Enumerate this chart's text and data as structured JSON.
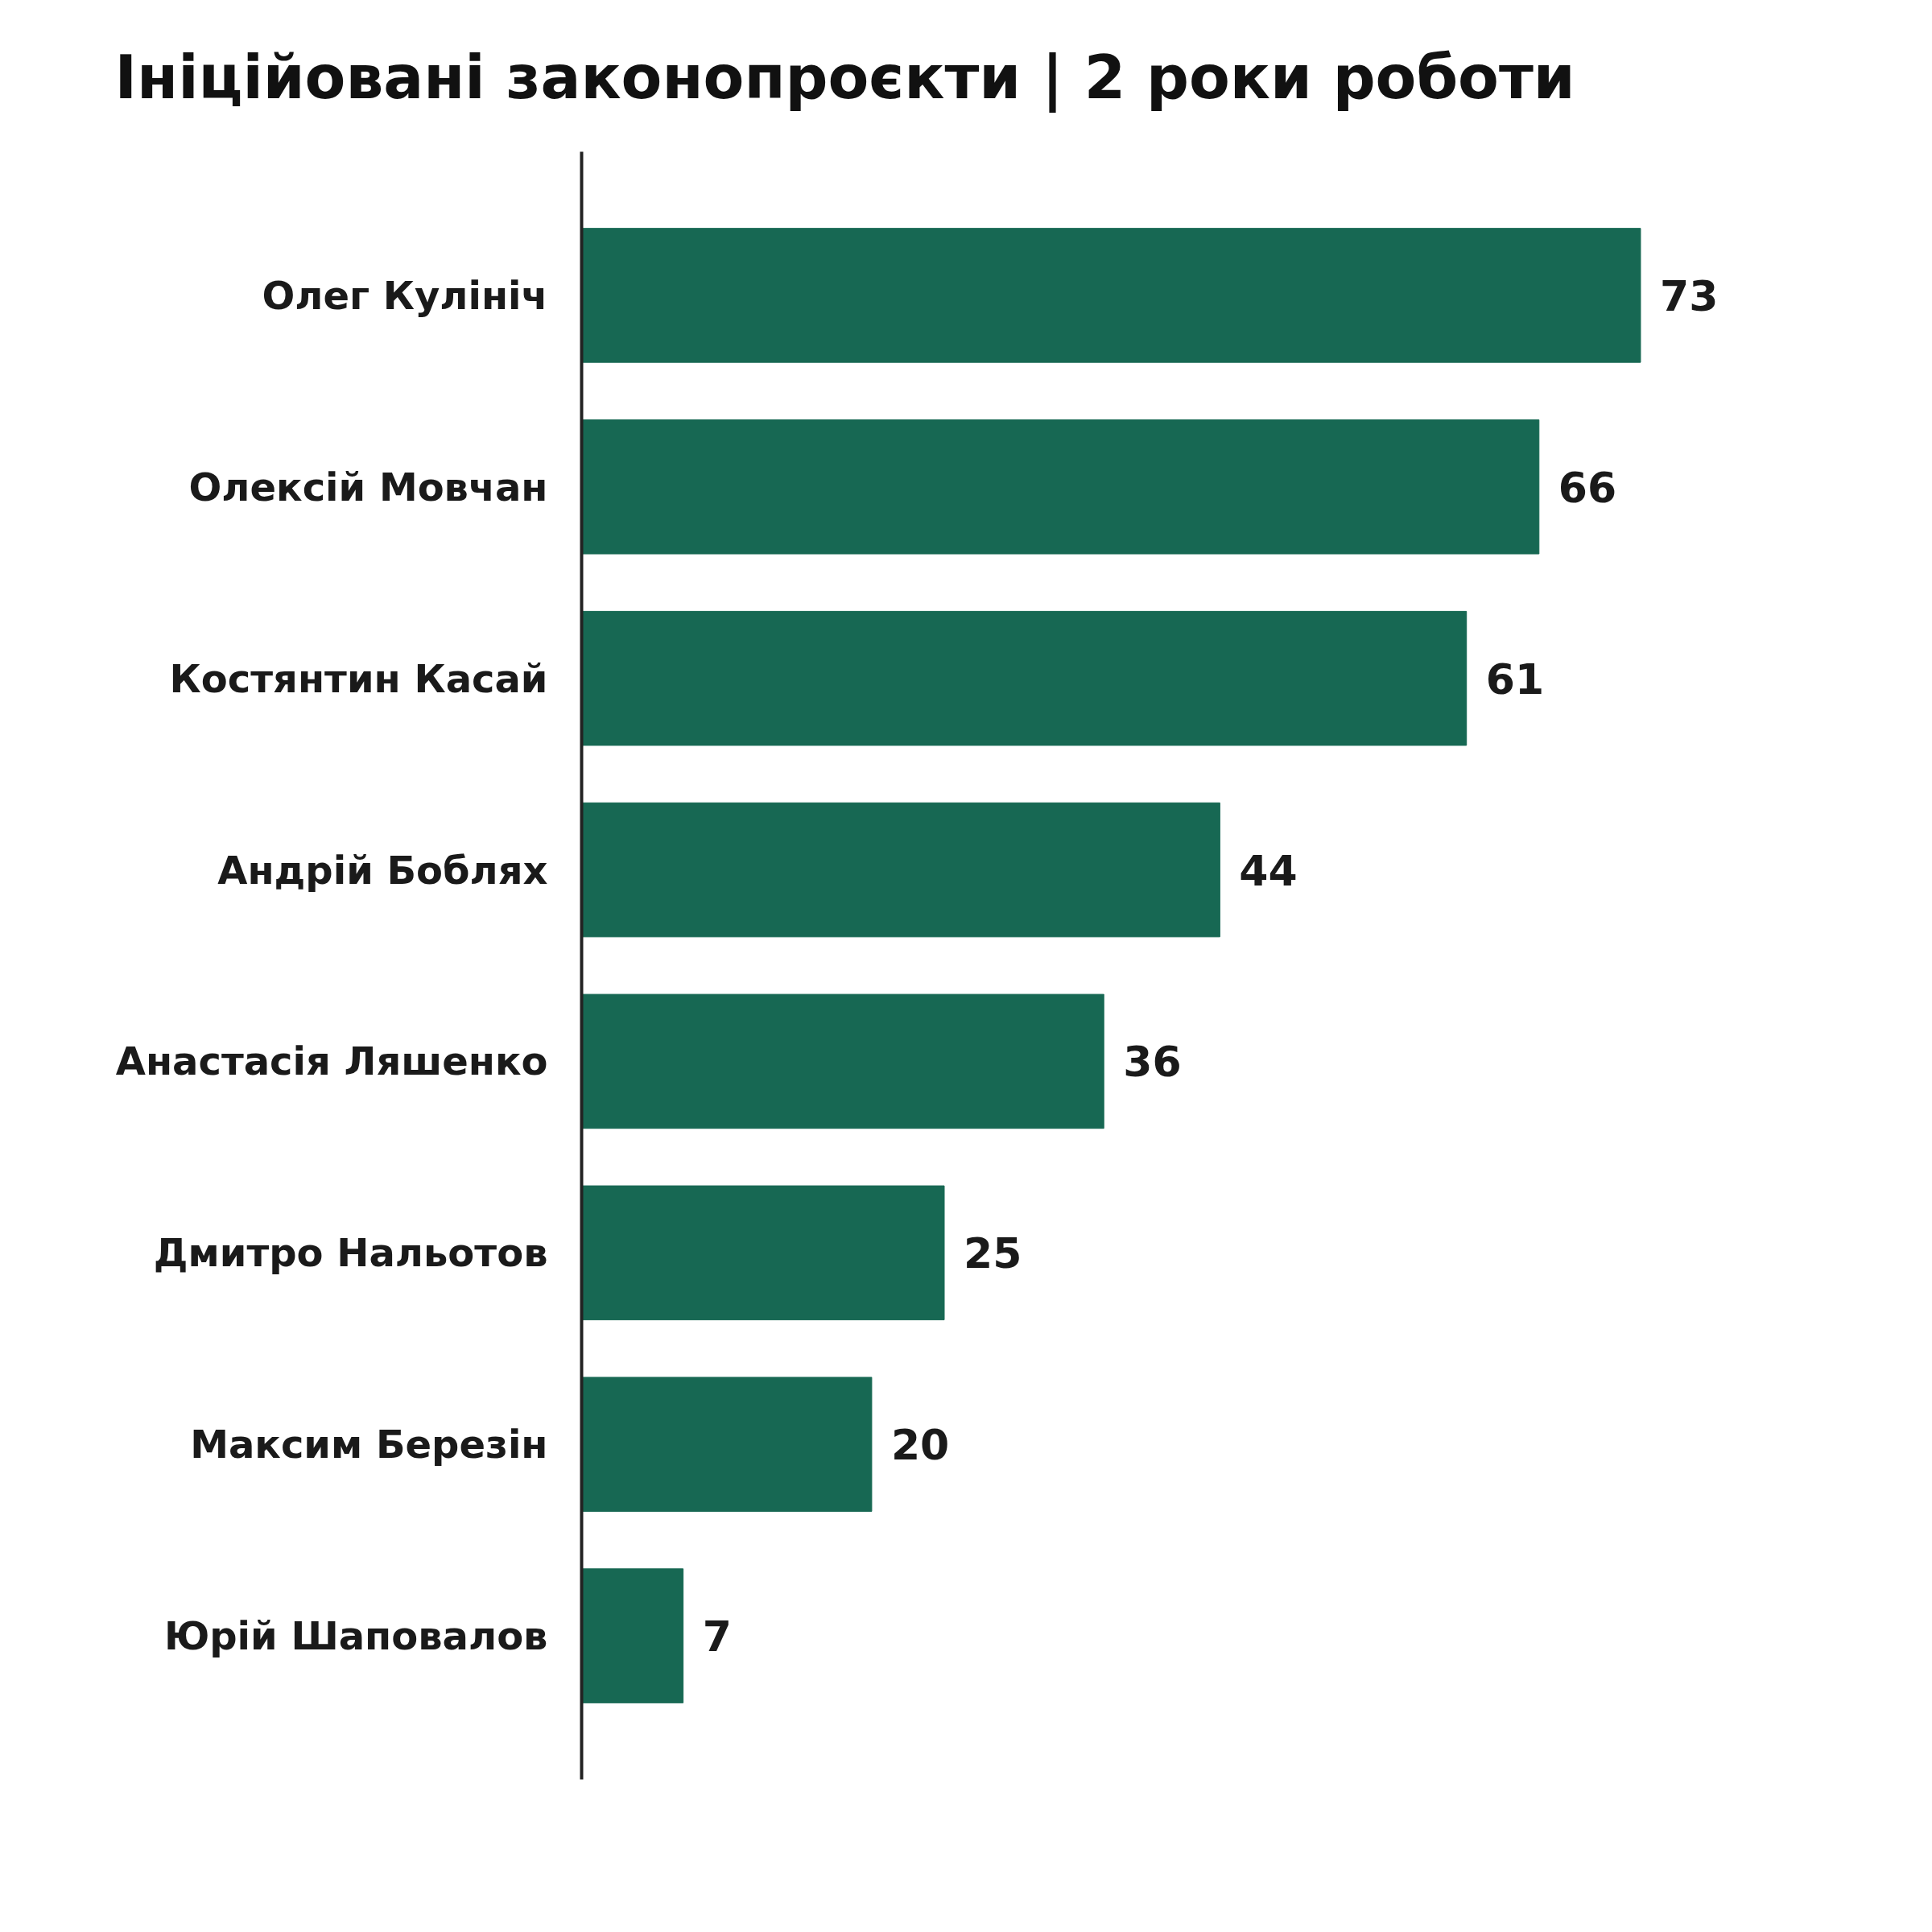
{
  "chart_data": {
    "type": "bar",
    "orientation": "horizontal",
    "title": "Ініційовані законопроєкти | 2 роки роботи",
    "categories": [
      "Олег Кулініч",
      "Олексій Мовчан",
      "Костянтин Касай",
      "Андрій Боблях",
      "Анастасія Ляшенко",
      "Дмитро Нальотов",
      "Максим Березін",
      "Юрій Шаповалов"
    ],
    "values": [
      73,
      66,
      61,
      44,
      36,
      25,
      20,
      7
    ],
    "color": "#176853",
    "data_labels": true
  }
}
